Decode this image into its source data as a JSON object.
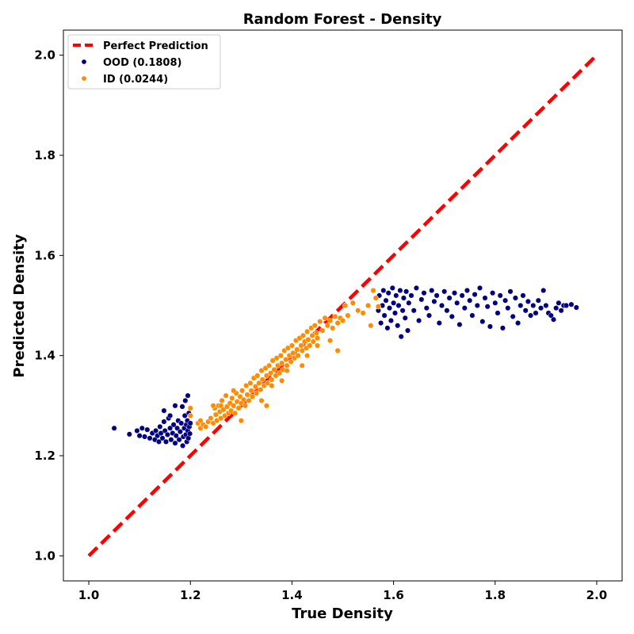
{
  "chart_data": {
    "type": "scatter",
    "title": "Random Forest - Density",
    "xlabel": "True Density",
    "ylabel": "Predicted Density",
    "xlim": [
      0.95,
      2.05
    ],
    "ylim": [
      0.95,
      2.05
    ],
    "xticks": [
      "1.0",
      "1.2",
      "1.4",
      "1.6",
      "1.8",
      "2.0"
    ],
    "yticks": [
      "1.0",
      "1.2",
      "1.4",
      "1.6",
      "1.8",
      "2.0"
    ],
    "grid": false,
    "legend_position": "top-left",
    "reference_line": {
      "name": "Perfect Prediction",
      "color": "#ff0000",
      "style": "dashed",
      "x": [
        1.0,
        2.0
      ],
      "y": [
        1.0,
        2.0
      ]
    },
    "series": [
      {
        "name": "OOD (0.1808)",
        "color": "#000080",
        "points": [
          [
            1.05,
            1.255
          ],
          [
            1.08,
            1.243
          ],
          [
            1.095,
            1.25
          ],
          [
            1.1,
            1.24
          ],
          [
            1.105,
            1.255
          ],
          [
            1.11,
            1.238
          ],
          [
            1.115,
            1.252
          ],
          [
            1.12,
            1.235
          ],
          [
            1.125,
            1.245
          ],
          [
            1.13,
            1.232
          ],
          [
            1.132,
            1.25
          ],
          [
            1.135,
            1.24
          ],
          [
            1.138,
            1.228
          ],
          [
            1.14,
            1.258
          ],
          [
            1.142,
            1.245
          ],
          [
            1.145,
            1.235
          ],
          [
            1.148,
            1.268
          ],
          [
            1.15,
            1.25
          ],
          [
            1.152,
            1.228
          ],
          [
            1.155,
            1.242
          ],
          [
            1.157,
            1.275
          ],
          [
            1.16,
            1.255
          ],
          [
            1.162,
            1.232
          ],
          [
            1.165,
            1.245
          ],
          [
            1.167,
            1.262
          ],
          [
            1.17,
            1.225
          ],
          [
            1.172,
            1.24
          ],
          [
            1.174,
            1.255
          ],
          [
            1.176,
            1.27
          ],
          [
            1.178,
            1.232
          ],
          [
            1.18,
            1.248
          ],
          [
            1.182,
            1.265
          ],
          [
            1.184,
            1.298
          ],
          [
            1.185,
            1.22
          ],
          [
            1.186,
            1.238
          ],
          [
            1.188,
            1.255
          ],
          [
            1.189,
            1.28
          ],
          [
            1.19,
            1.31
          ],
          [
            1.191,
            1.242
          ],
          [
            1.192,
            1.262
          ],
          [
            1.193,
            1.228
          ],
          [
            1.194,
            1.27
          ],
          [
            1.195,
            1.25
          ],
          [
            1.196,
            1.235
          ],
          [
            1.197,
            1.285
          ],
          [
            1.198,
            1.258
          ],
          [
            1.199,
            1.244
          ],
          [
            1.2,
            1.265
          ],
          [
            1.148,
            1.29
          ],
          [
            1.17,
            1.3
          ],
          [
            1.195,
            1.32
          ],
          [
            1.16,
            1.28
          ],
          [
            1.57,
            1.49
          ],
          [
            1.572,
            1.52
          ],
          [
            1.575,
            1.465
          ],
          [
            1.578,
            1.5
          ],
          [
            1.58,
            1.53
          ],
          [
            1.582,
            1.48
          ],
          [
            1.585,
            1.51
          ],
          [
            1.588,
            1.455
          ],
          [
            1.59,
            1.525
          ],
          [
            1.592,
            1.495
          ],
          [
            1.595,
            1.47
          ],
          [
            1.598,
            1.535
          ],
          [
            1.6,
            1.505
          ],
          [
            1.603,
            1.485
          ],
          [
            1.605,
            1.52
          ],
          [
            1.608,
            1.46
          ],
          [
            1.61,
            1.5
          ],
          [
            1.613,
            1.53
          ],
          [
            1.615,
            1.438
          ],
          [
            1.618,
            1.49
          ],
          [
            1.62,
            1.515
          ],
          [
            1.623,
            1.475
          ],
          [
            1.625,
            1.528
          ],
          [
            1.628,
            1.45
          ],
          [
            1.63,
            1.505
          ],
          [
            1.635,
            1.52
          ],
          [
            1.64,
            1.49
          ],
          [
            1.645,
            1.535
          ],
          [
            1.65,
            1.47
          ],
          [
            1.655,
            1.512
          ],
          [
            1.66,
            1.525
          ],
          [
            1.665,
            1.495
          ],
          [
            1.67,
            1.48
          ],
          [
            1.675,
            1.53
          ],
          [
            1.68,
            1.508
          ],
          [
            1.685,
            1.52
          ],
          [
            1.69,
            1.465
          ],
          [
            1.695,
            1.5
          ],
          [
            1.7,
            1.528
          ],
          [
            1.705,
            1.49
          ],
          [
            1.71,
            1.515
          ],
          [
            1.715,
            1.478
          ],
          [
            1.72,
            1.525
          ],
          [
            1.725,
            1.505
          ],
          [
            1.73,
            1.462
          ],
          [
            1.735,
            1.52
          ],
          [
            1.74,
            1.495
          ],
          [
            1.745,
            1.53
          ],
          [
            1.75,
            1.51
          ],
          [
            1.755,
            1.48
          ],
          [
            1.76,
            1.522
          ],
          [
            1.765,
            1.5
          ],
          [
            1.77,
            1.535
          ],
          [
            1.775,
            1.468
          ],
          [
            1.78,
            1.515
          ],
          [
            1.785,
            1.498
          ],
          [
            1.79,
            1.458
          ],
          [
            1.795,
            1.525
          ],
          [
            1.8,
            1.505
          ],
          [
            1.805,
            1.485
          ],
          [
            1.81,
            1.52
          ],
          [
            1.815,
            1.455
          ],
          [
            1.82,
            1.51
          ],
          [
            1.825,
            1.495
          ],
          [
            1.83,
            1.528
          ],
          [
            1.835,
            1.478
          ],
          [
            1.84,
            1.515
          ],
          [
            1.845,
            1.465
          ],
          [
            1.85,
            1.5
          ],
          [
            1.855,
            1.52
          ],
          [
            1.86,
            1.49
          ],
          [
            1.865,
            1.508
          ],
          [
            1.87,
            1.48
          ],
          [
            1.875,
            1.5
          ],
          [
            1.88,
            1.485
          ],
          [
            1.885,
            1.51
          ],
          [
            1.89,
            1.495
          ],
          [
            1.895,
            1.53
          ],
          [
            1.9,
            1.5
          ],
          [
            1.905,
            1.485
          ],
          [
            1.91,
            1.48
          ],
          [
            1.915,
            1.472
          ],
          [
            1.92,
            1.495
          ],
          [
            1.925,
            1.505
          ],
          [
            1.93,
            1.49
          ],
          [
            1.935,
            1.5
          ],
          [
            1.94,
            1.5
          ],
          [
            1.95,
            1.502
          ],
          [
            1.96,
            1.496
          ]
        ]
      },
      {
        "name": "ID (0.0244)",
        "color": "#ff8c00",
        "points": [
          [
            1.2,
            1.28
          ],
          [
            1.2,
            1.295
          ],
          [
            1.215,
            1.265
          ],
          [
            1.22,
            1.255
          ],
          [
            1.225,
            1.262
          ],
          [
            1.23,
            1.258
          ],
          [
            1.235,
            1.268
          ],
          [
            1.24,
            1.275
          ],
          [
            1.245,
            1.265
          ],
          [
            1.248,
            1.295
          ],
          [
            1.25,
            1.282
          ],
          [
            1.252,
            1.27
          ],
          [
            1.255,
            1.3
          ],
          [
            1.258,
            1.288
          ],
          [
            1.26,
            1.275
          ],
          [
            1.262,
            1.31
          ],
          [
            1.265,
            1.292
          ],
          [
            1.268,
            1.28
          ],
          [
            1.27,
            1.32
          ],
          [
            1.272,
            1.298
          ],
          [
            1.275,
            1.285
          ],
          [
            1.278,
            1.305
          ],
          [
            1.28,
            1.29
          ],
          [
            1.282,
            1.315
          ],
          [
            1.285,
            1.3
          ],
          [
            1.288,
            1.285
          ],
          [
            1.29,
            1.325
          ],
          [
            1.292,
            1.308
          ],
          [
            1.295,
            1.295
          ],
          [
            1.298,
            1.318
          ],
          [
            1.3,
            1.305
          ],
          [
            1.302,
            1.33
          ],
          [
            1.305,
            1.312
          ],
          [
            1.308,
            1.3
          ],
          [
            1.31,
            1.34
          ],
          [
            1.312,
            1.322
          ],
          [
            1.315,
            1.31
          ],
          [
            1.318,
            1.345
          ],
          [
            1.32,
            1.33
          ],
          [
            1.322,
            1.318
          ],
          [
            1.325,
            1.355
          ],
          [
            1.328,
            1.338
          ],
          [
            1.33,
            1.325
          ],
          [
            1.332,
            1.36
          ],
          [
            1.335,
            1.345
          ],
          [
            1.338,
            1.332
          ],
          [
            1.34,
            1.37
          ],
          [
            1.342,
            1.352
          ],
          [
            1.345,
            1.34
          ],
          [
            1.348,
            1.375
          ],
          [
            1.35,
            1.36
          ],
          [
            1.352,
            1.345
          ],
          [
            1.355,
            1.38
          ],
          [
            1.358,
            1.365
          ],
          [
            1.36,
            1.352
          ],
          [
            1.362,
            1.39
          ],
          [
            1.365,
            1.372
          ],
          [
            1.368,
            1.36
          ],
          [
            1.37,
            1.395
          ],
          [
            1.372,
            1.38
          ],
          [
            1.375,
            1.365
          ],
          [
            1.378,
            1.4
          ],
          [
            1.38,
            1.385
          ],
          [
            1.382,
            1.372
          ],
          [
            1.385,
            1.41
          ],
          [
            1.388,
            1.392
          ],
          [
            1.39,
            1.38
          ],
          [
            1.392,
            1.415
          ],
          [
            1.395,
            1.4
          ],
          [
            1.398,
            1.388
          ],
          [
            1.4,
            1.42
          ],
          [
            1.402,
            1.405
          ],
          [
            1.405,
            1.395
          ],
          [
            1.408,
            1.43
          ],
          [
            1.41,
            1.412
          ],
          [
            1.412,
            1.4
          ],
          [
            1.415,
            1.435
          ],
          [
            1.418,
            1.42
          ],
          [
            1.42,
            1.41
          ],
          [
            1.422,
            1.44
          ],
          [
            1.425,
            1.428
          ],
          [
            1.428,
            1.415
          ],
          [
            1.43,
            1.448
          ],
          [
            1.432,
            1.432
          ],
          [
            1.435,
            1.42
          ],
          [
            1.438,
            1.455
          ],
          [
            1.44,
            1.44
          ],
          [
            1.442,
            1.428
          ],
          [
            1.445,
            1.46
          ],
          [
            1.448,
            1.445
          ],
          [
            1.45,
            1.435
          ],
          [
            1.455,
            1.468
          ],
          [
            1.46,
            1.45
          ],
          [
            1.465,
            1.475
          ],
          [
            1.47,
            1.46
          ],
          [
            1.475,
            1.47
          ],
          [
            1.48,
            1.455
          ],
          [
            1.485,
            1.478
          ],
          [
            1.49,
            1.465
          ],
          [
            1.495,
            1.475
          ],
          [
            1.5,
            1.47
          ],
          [
            1.505,
            1.5
          ],
          [
            1.51,
            1.48
          ],
          [
            1.52,
            1.505
          ],
          [
            1.53,
            1.49
          ],
          [
            1.54,
            1.485
          ],
          [
            1.55,
            1.5
          ],
          [
            1.555,
            1.46
          ],
          [
            1.56,
            1.53
          ],
          [
            1.565,
            1.515
          ],
          [
            1.57,
            1.498
          ],
          [
            1.34,
            1.31
          ],
          [
            1.35,
            1.3
          ],
          [
            1.36,
            1.34
          ],
          [
            1.38,
            1.35
          ],
          [
            1.39,
            1.37
          ],
          [
            1.42,
            1.38
          ],
          [
            1.43,
            1.4
          ],
          [
            1.45,
            1.42
          ],
          [
            1.49,
            1.41
          ],
          [
            1.475,
            1.43
          ],
          [
            1.3,
            1.27
          ],
          [
            1.285,
            1.33
          ],
          [
            1.26,
            1.3
          ],
          [
            1.245,
            1.3
          ],
          [
            1.22,
            1.27
          ]
        ]
      }
    ]
  }
}
